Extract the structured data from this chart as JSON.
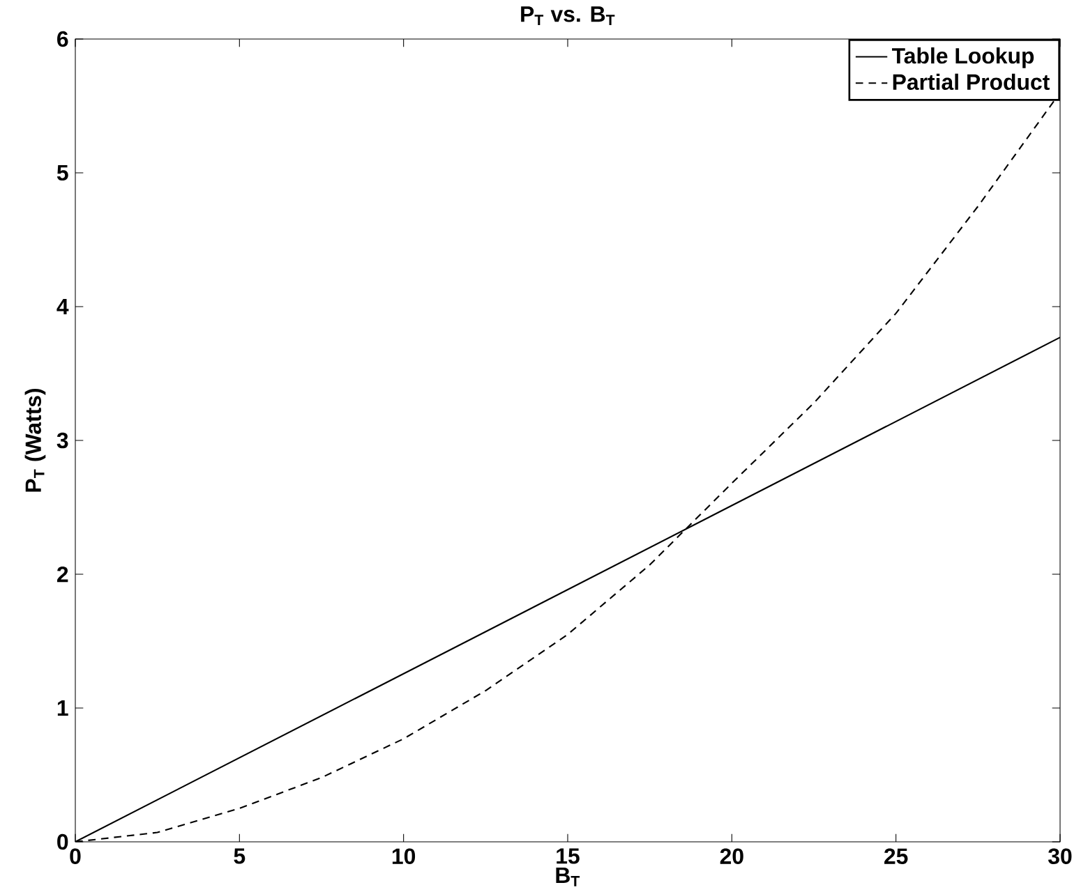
{
  "chart_data": {
    "type": "line",
    "title": "P$_{T}$ vs. B$_{T}$",
    "xlabel": "B$_{T}$",
    "ylabel": "P$_{T}$ (Watts)",
    "xlim": [
      0,
      30
    ],
    "ylim": [
      0,
      6
    ],
    "xticks": [
      0,
      5,
      10,
      15,
      20,
      25,
      30
    ],
    "yticks": [
      0,
      1,
      2,
      3,
      4,
      5,
      6
    ],
    "grid": false,
    "legend": "top right",
    "series": [
      {
        "name": "Table Lookup",
        "color": "#000000",
        "line_style": "solid",
        "x": [
          0,
          30
        ],
        "values": [
          0,
          3.77
        ]
      },
      {
        "name": "Partial Product",
        "color": "#000000",
        "line_style": "dashed",
        "x": [
          0,
          2.5,
          5,
          7.5,
          10,
          12.5,
          15,
          17.5,
          20,
          22.5,
          25,
          27.5,
          30
        ],
        "values": [
          0,
          0.07,
          0.25,
          0.48,
          0.77,
          1.13,
          1.55,
          2.07,
          2.68,
          3.28,
          3.95,
          4.75,
          5.6
        ]
      }
    ]
  }
}
